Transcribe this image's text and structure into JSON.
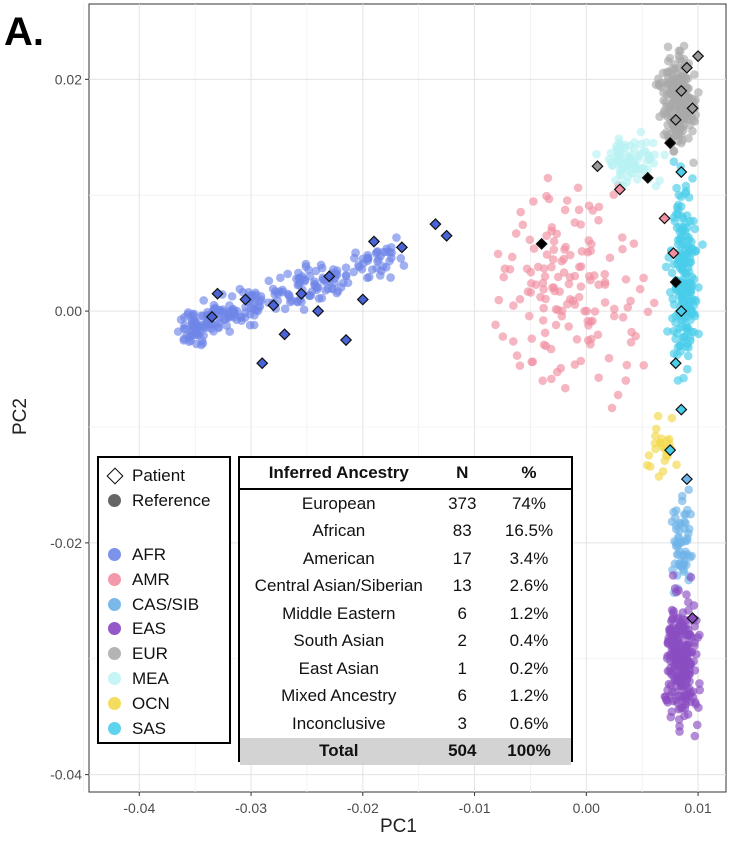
{
  "panel_label": "A.",
  "chart_data": {
    "type": "scatter",
    "xlabel": "PC1",
    "ylabel": "PC2",
    "xlim": [
      -0.0445,
      0.0125
    ],
    "ylim": [
      -0.0415,
      0.0265
    ],
    "xticks": [
      -0.04,
      -0.03,
      -0.02,
      -0.01,
      0.0,
      0.01
    ],
    "xtick_labels": [
      "-0.04",
      "-0.03",
      "-0.02",
      "-0.01",
      "0.00",
      "0.01"
    ],
    "yticks": [
      -0.04,
      -0.02,
      0.0,
      0.02
    ],
    "ytick_labels": [
      "-0.04",
      "-0.02",
      "0.00",
      "0.02"
    ],
    "grid": true,
    "reference_clusters": [
      {
        "name": "AFR",
        "color": "#6f86e8",
        "x_range": [
          -0.036,
          -0.018
        ],
        "y_range": [
          -0.004,
          0.006
        ],
        "n": 260
      },
      {
        "name": "AMR",
        "color": "#f08fa2",
        "x_range": [
          -0.012,
          0.009
        ],
        "y_range": [
          -0.012,
          0.014
        ],
        "n": 150
      },
      {
        "name": "CAS/SIB",
        "color": "#6fb3e8",
        "x_range": [
          0.007,
          0.01
        ],
        "y_range": [
          -0.026,
          -0.014
        ],
        "n": 60
      },
      {
        "name": "EAS",
        "color": "#8a4dc2",
        "x_range": [
          0.0065,
          0.0105
        ],
        "y_range": [
          -0.038,
          -0.022
        ],
        "n": 240
      },
      {
        "name": "EUR",
        "color": "#a9a9a9",
        "x_range": [
          0.006,
          0.0105
        ],
        "y_range": [
          0.012,
          0.024
        ],
        "n": 220
      },
      {
        "name": "MEA",
        "color": "#b8f1f3",
        "x_range": [
          0.0,
          0.008
        ],
        "y_range": [
          0.01,
          0.016
        ],
        "n": 90
      },
      {
        "name": "OCN",
        "color": "#f2d84a",
        "x_range": [
          0.005,
          0.0085
        ],
        "y_range": [
          -0.016,
          -0.008
        ],
        "n": 25
      },
      {
        "name": "SAS",
        "color": "#48cdea",
        "x_range": [
          0.007,
          0.0105
        ],
        "y_range": [
          -0.008,
          0.014
        ],
        "n": 200
      }
    ],
    "patient_points": [
      {
        "x": -0.0335,
        "y": -0.0005,
        "color": "#4a63d6"
      },
      {
        "x": -0.033,
        "y": 0.0015,
        "color": "#4a63d6"
      },
      {
        "x": -0.0305,
        "y": 0.001,
        "color": "#4a63d6"
      },
      {
        "x": -0.029,
        "y": -0.0045,
        "color": "#4a63d6"
      },
      {
        "x": -0.028,
        "y": 0.0005,
        "color": "#4a63d6"
      },
      {
        "x": -0.027,
        "y": -0.002,
        "color": "#4a63d6"
      },
      {
        "x": -0.0255,
        "y": 0.0015,
        "color": "#4a63d6"
      },
      {
        "x": -0.024,
        "y": 0.0,
        "color": "#4a63d6"
      },
      {
        "x": -0.023,
        "y": 0.003,
        "color": "#4a63d6"
      },
      {
        "x": -0.0215,
        "y": -0.0025,
        "color": "#4a63d6"
      },
      {
        "x": -0.02,
        "y": 0.001,
        "color": "#4a63d6"
      },
      {
        "x": -0.019,
        "y": 0.006,
        "color": "#4a63d6"
      },
      {
        "x": -0.0165,
        "y": 0.0055,
        "color": "#4a63d6"
      },
      {
        "x": -0.0135,
        "y": 0.0075,
        "color": "#4a63d6"
      },
      {
        "x": -0.0125,
        "y": 0.0065,
        "color": "#4a63d6"
      },
      {
        "x": -0.004,
        "y": 0.0058,
        "color": "#000000"
      },
      {
        "x": 0.001,
        "y": 0.0125,
        "color": "#999999"
      },
      {
        "x": 0.003,
        "y": 0.0105,
        "color": "#f08fa2"
      },
      {
        "x": 0.0055,
        "y": 0.0115,
        "color": "#000000"
      },
      {
        "x": 0.007,
        "y": 0.008,
        "color": "#f08fa2"
      },
      {
        "x": 0.0075,
        "y": 0.0145,
        "color": "#000000"
      },
      {
        "x": 0.008,
        "y": 0.0165,
        "color": "#999999"
      },
      {
        "x": 0.0085,
        "y": 0.019,
        "color": "#999999"
      },
      {
        "x": 0.009,
        "y": 0.021,
        "color": "#999999"
      },
      {
        "x": 0.0095,
        "y": 0.0175,
        "color": "#999999"
      },
      {
        "x": 0.01,
        "y": 0.022,
        "color": "#999999"
      },
      {
        "x": 0.0085,
        "y": 0.012,
        "color": "#48cdea"
      },
      {
        "x": 0.0078,
        "y": 0.005,
        "color": "#f08fa2"
      },
      {
        "x": 0.008,
        "y": 0.0025,
        "color": "#000000"
      },
      {
        "x": 0.0085,
        "y": 0.0,
        "color": "#48cdea"
      },
      {
        "x": 0.008,
        "y": -0.0045,
        "color": "#48cdea"
      },
      {
        "x": 0.0085,
        "y": -0.0085,
        "color": "#48cdea"
      },
      {
        "x": 0.0075,
        "y": -0.012,
        "color": "#48cdea"
      },
      {
        "x": 0.009,
        "y": -0.0145,
        "color": "#6fb3e8"
      },
      {
        "x": 0.0095,
        "y": -0.0265,
        "color": "#8a4dc2"
      }
    ]
  },
  "legend": {
    "shape_items": [
      {
        "label": "Patient",
        "symbol": "diamond"
      },
      {
        "label": "Reference",
        "symbol": "dot",
        "color": "#666666"
      }
    ],
    "color_items": [
      {
        "label": "AFR",
        "color": "#7d92ea"
      },
      {
        "label": "AMR",
        "color": "#f29aab"
      },
      {
        "label": "CAS/SIB",
        "color": "#7ab8ea"
      },
      {
        "label": "EAS",
        "color": "#9558c8"
      },
      {
        "label": "EUR",
        "color": "#b4b4b4"
      },
      {
        "label": "MEA",
        "color": "#c7f4f5"
      },
      {
        "label": "OCN",
        "color": "#f4dd5e"
      },
      {
        "label": "SAS",
        "color": "#5ed3ee"
      }
    ]
  },
  "table": {
    "headers": [
      "Inferred Ancestry",
      "N",
      "%"
    ],
    "rows": [
      [
        "European",
        "373",
        "74%"
      ],
      [
        "African",
        "83",
        "16.5%"
      ],
      [
        "American",
        "17",
        "3.4%"
      ],
      [
        "Central Asian/Siberian",
        "13",
        "2.6%"
      ],
      [
        "Middle Eastern",
        "6",
        "1.2%"
      ],
      [
        "South Asian",
        "2",
        "0.4%"
      ],
      [
        "East Asian",
        "1",
        "0.2%"
      ],
      [
        "Mixed Ancestry",
        "6",
        "1.2%"
      ],
      [
        "Inconclusive",
        "3",
        "0.6%"
      ]
    ],
    "total": [
      "Total",
      "504",
      "100%"
    ]
  }
}
